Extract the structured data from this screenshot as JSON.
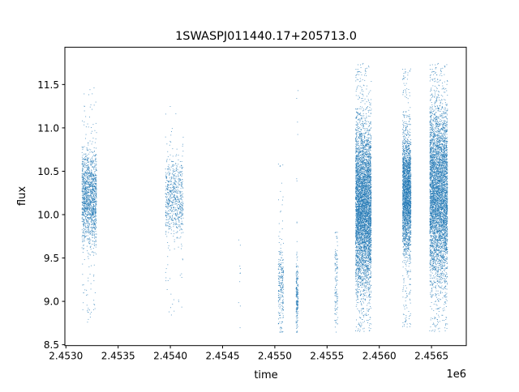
{
  "chart_data": {
    "type": "scatter",
    "title": "1SWASPJ011440.17+205713.0",
    "xlabel": "time",
    "ylabel": "flux",
    "x_offset_label": "1e6",
    "xlim": [
      2.45299,
      2.456833
    ],
    "ylim": [
      8.49,
      11.93
    ],
    "x_ticks": [
      2.453,
      2.4535,
      2.454,
      2.4545,
      2.455,
      2.4555,
      2.456,
      2.4565
    ],
    "x_tick_labels": [
      "2.4530",
      "2.4535",
      "2.4540",
      "2.4545",
      "2.4550",
      "2.4555",
      "2.4560",
      "2.4565"
    ],
    "y_ticks": [
      8.5,
      9.0,
      9.5,
      10.0,
      10.5,
      11.0,
      11.5
    ],
    "y_tick_labels": [
      "8.5",
      "9.0",
      "9.5",
      "10.0",
      "10.5",
      "11.0",
      "11.5"
    ],
    "grid": false,
    "marker_color": "#1f77b4",
    "clusters": [
      {
        "time_range": [
          2.45315,
          2.45329
        ],
        "core_flux_range": [
          9.7,
          10.7
        ],
        "flux_range": [
          8.75,
          11.48
        ],
        "approx_points": 1500
      },
      {
        "time_range": [
          2.45395,
          2.45412
        ],
        "core_flux_range": [
          9.75,
          10.65
        ],
        "flux_range": [
          8.8,
          11.33
        ],
        "approx_points": 700
      },
      {
        "time_range": [
          2.45465,
          2.45467
        ],
        "core_flux_range": [
          8.7,
          9.8
        ],
        "flux_range": [
          8.7,
          9.8
        ],
        "approx_points": 10
      },
      {
        "time_range": [
          2.45503,
          2.45508
        ],
        "core_flux_range": [
          8.65,
          9.7
        ],
        "flux_range": [
          8.65,
          10.6
        ],
        "approx_points": 250
      },
      {
        "time_range": [
          2.4552,
          2.45522
        ],
        "core_flux_range": [
          8.65,
          9.5
        ],
        "flux_range": [
          8.65,
          11.45
        ],
        "approx_points": 200
      },
      {
        "time_range": [
          2.45557,
          2.4556
        ],
        "core_flux_range": [
          8.65,
          9.8
        ],
        "flux_range": [
          8.65,
          9.8
        ],
        "approx_points": 120
      },
      {
        "time_range": [
          2.45577,
          2.45592
        ],
        "core_flux_range": [
          9.2,
          11.0
        ],
        "flux_range": [
          8.65,
          11.75
        ],
        "approx_points": 5000
      },
      {
        "time_range": [
          2.45622,
          2.4563
        ],
        "core_flux_range": [
          9.6,
          10.9
        ],
        "flux_range": [
          8.7,
          11.7
        ],
        "approx_points": 2500
      },
      {
        "time_range": [
          2.45648,
          2.45665
        ],
        "core_flux_range": [
          9.3,
          11.2
        ],
        "flux_range": [
          8.65,
          11.75
        ],
        "approx_points": 5000
      }
    ]
  }
}
